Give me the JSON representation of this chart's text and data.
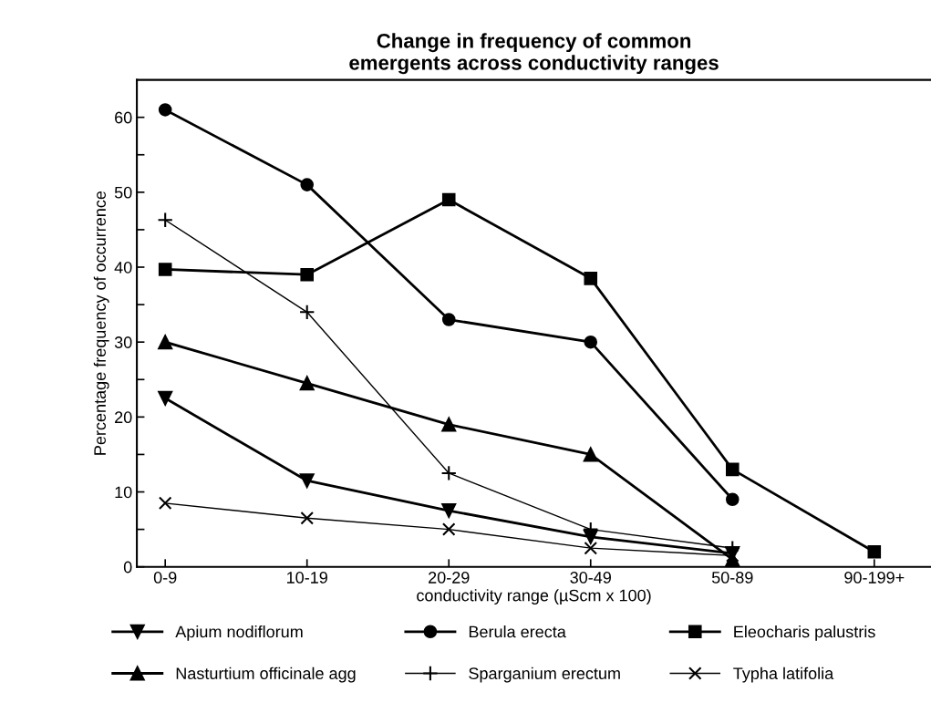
{
  "chart_data": {
    "type": "line",
    "title": "Change in frequency of common\nemergents across conductivity ranges",
    "xlabel": "conductivity range (µScm x 100)",
    "ylabel": "Percentage frequency of occurrence",
    "categories": [
      "0-9",
      "10-19",
      "20-29",
      "30-49",
      "50-89",
      "90-199+"
    ],
    "ylim": [
      0,
      65
    ],
    "yticks": [
      0,
      {
        "value": 5,
        "label": null
      },
      10,
      {
        "value": 15,
        "label": null
      },
      20,
      {
        "value": 25,
        "label": null
      },
      30,
      {
        "value": 35,
        "label": null
      },
      40,
      {
        "value": 45,
        "label": null
      },
      50,
      {
        "value": 55,
        "label": null
      },
      60
    ],
    "grid": false,
    "legend": "bottom",
    "series": [
      {
        "name": "Apium nodiflorum",
        "color": "#000000",
        "marker": "triangle_down",
        "values": [
          22.5,
          11.5,
          7.5,
          4,
          1.8,
          null
        ]
      },
      {
        "name": "Berula erecta",
        "color": "#000000",
        "marker": "circle",
        "values": [
          61,
          51,
          33,
          30,
          9,
          null
        ]
      },
      {
        "name": "Eleocharis palustris",
        "color": "#000000",
        "marker": "square",
        "values": [
          39.7,
          39,
          49,
          38.5,
          13,
          2
        ]
      },
      {
        "name": "Nasturtium officinale agg",
        "color": "#000000",
        "marker": "triangle",
        "values": [
          30,
          24.5,
          19,
          15,
          1,
          null
        ]
      },
      {
        "name": "Sparganium erectum",
        "color": "#000000",
        "marker": "plus",
        "values": [
          46.3,
          34,
          12.5,
          5,
          2.5,
          null
        ]
      },
      {
        "name": "Typha latifolia",
        "color": "#000000",
        "marker": "cross",
        "values": [
          8.5,
          6.5,
          5,
          2.5,
          1.5,
          null
        ]
      }
    ]
  }
}
